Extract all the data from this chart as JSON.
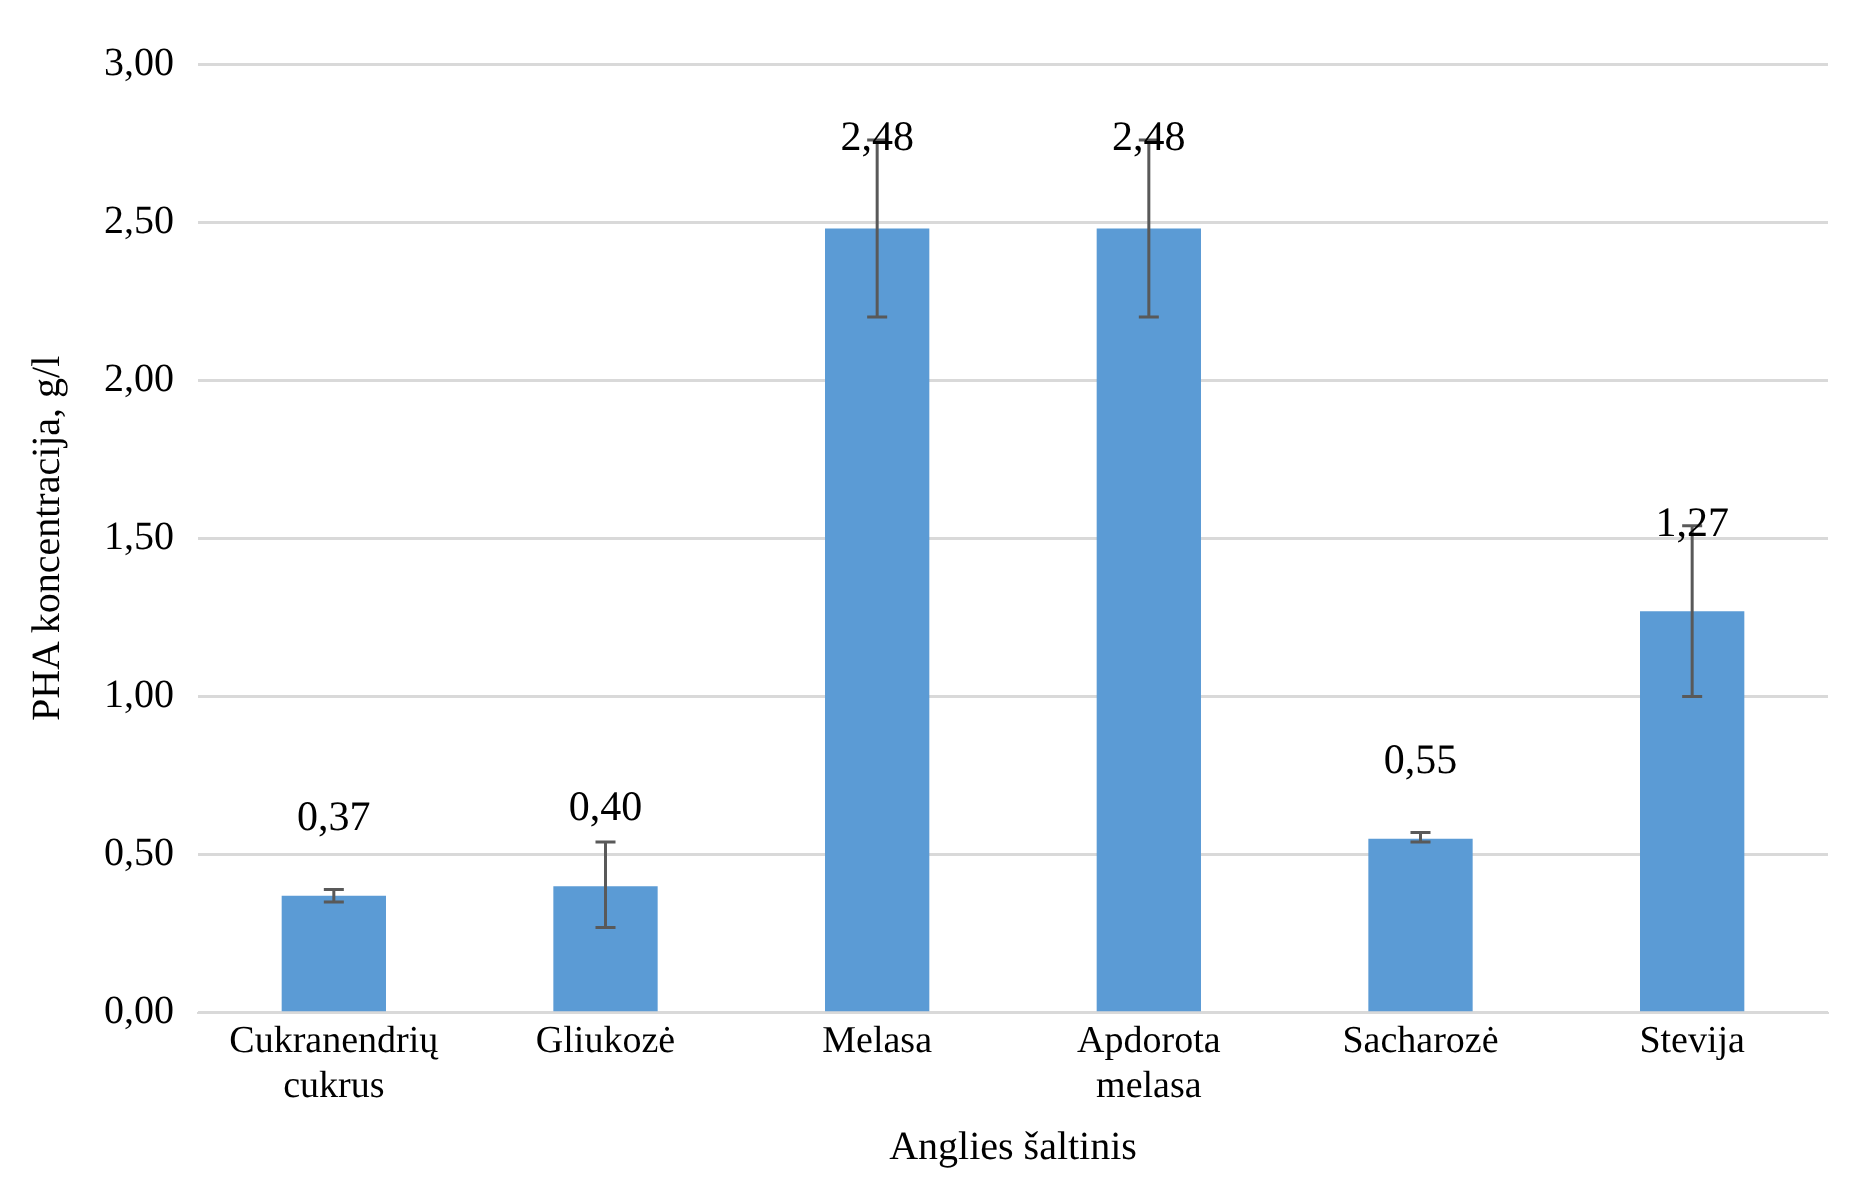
{
  "chart_data": {
    "type": "bar",
    "xlabel": "Anglies šaltinis",
    "ylabel": "PHA koncentracija, g/l",
    "categories": [
      "Cukranendrių cukrus",
      "Gliukozė",
      "Melasa",
      "Apdorota melasa",
      "Sacharozė",
      "Stevija"
    ],
    "values": [
      0.37,
      0.4,
      2.48,
      2.48,
      0.55,
      1.27
    ],
    "value_labels": [
      "0,37",
      "0,40",
      "2,48",
      "2,48",
      "0,55",
      "1,27"
    ],
    "errors": [
      [
        0.35,
        0.39
      ],
      [
        0.27,
        0.54
      ],
      [
        2.2,
        2.76
      ],
      [
        2.2,
        2.76
      ],
      [
        0.54,
        0.57
      ],
      [
        1.0,
        1.54
      ]
    ],
    "color": "#5b9bd5",
    "ylim": [
      0,
      3
    ],
    "yticks": [
      {
        "value": 0,
        "label": "0,00"
      },
      {
        "value": 0.5,
        "label": "0,50"
      },
      {
        "value": 1,
        "label": "1,00"
      },
      {
        "value": 1.5,
        "label": "1,50"
      },
      {
        "value": 2,
        "label": "2,00"
      },
      {
        "value": 2.5,
        "label": "2,50"
      },
      {
        "value": 3,
        "label": "3,00"
      }
    ],
    "grid": "y",
    "legend": false
  }
}
